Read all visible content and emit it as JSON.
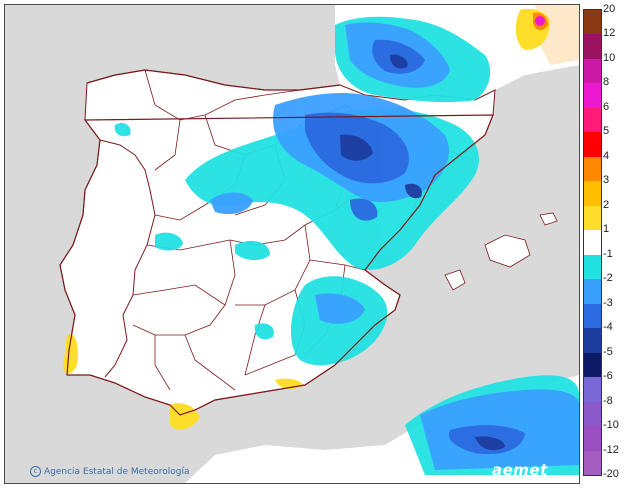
{
  "map": {
    "credit": "Agencia Estatal de Meteorología",
    "credit_icon": "copyright-icon",
    "brand": "aemet",
    "colors": {
      "sea": "#d9d9d9",
      "land": "#ffffff",
      "border": "#7b1a1a",
      "france": "#fde9c9"
    }
  },
  "legend": {
    "ticks": [
      "20",
      "12",
      "10",
      "8",
      "6",
      "5",
      "4",
      "3",
      "2",
      "1",
      "-1",
      "-2",
      "-3",
      "-4",
      "-5",
      "-6",
      "-8",
      "-10",
      "-12",
      "-20"
    ],
    "bins": [
      {
        "from": "12",
        "to": "20",
        "color": "#8b3a13"
      },
      {
        "from": "10",
        "to": "12",
        "color": "#9b1260"
      },
      {
        "from": "8",
        "to": "10",
        "color": "#cc1aa6"
      },
      {
        "from": "6",
        "to": "8",
        "color": "#ee1ad2"
      },
      {
        "from": "5",
        "to": "6",
        "color": "#ff1a7a"
      },
      {
        "from": "4",
        "to": "5",
        "color": "#ff0000"
      },
      {
        "from": "3",
        "to": "4",
        "color": "#ff8800"
      },
      {
        "from": "2",
        "to": "3",
        "color": "#ffbf00"
      },
      {
        "from": "1",
        "to": "2",
        "color": "#ffde2b"
      },
      {
        "from": "-1",
        "to": "1",
        "color": "#ffffff"
      },
      {
        "from": "-2",
        "to": "-1",
        "color": "#22e1e1"
      },
      {
        "from": "-3",
        "to": "-2",
        "color": "#3aa0ff"
      },
      {
        "from": "-4",
        "to": "-3",
        "color": "#2b6ae0"
      },
      {
        "from": "-5",
        "to": "-4",
        "color": "#1d3d9e"
      },
      {
        "from": "-6",
        "to": "-5",
        "color": "#0d1a66"
      },
      {
        "from": "-8",
        "to": "-6",
        "color": "#7b69d8"
      },
      {
        "from": "-10",
        "to": "-8",
        "color": "#8a58c8"
      },
      {
        "from": "-12",
        "to": "-10",
        "color": "#9b4ec2"
      },
      {
        "from": "-20",
        "to": "-12",
        "color": "#a55ec0"
      }
    ]
  }
}
